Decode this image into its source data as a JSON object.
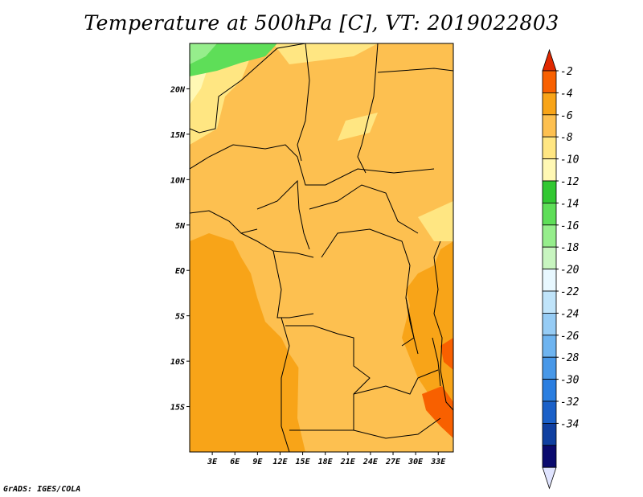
{
  "title": "Temperature at 500hPa [C], VT: 2019022803",
  "credit": "GrADS: IGES/COLA",
  "map": {
    "lon_range": [
      0,
      35
    ],
    "lat_range": [
      -20,
      25
    ],
    "lon_ticks": [
      {
        "value": 3,
        "label": "3E"
      },
      {
        "value": 6,
        "label": "6E"
      },
      {
        "value": 9,
        "label": "9E"
      },
      {
        "value": 12,
        "label": "12E"
      },
      {
        "value": 15,
        "label": "15E"
      },
      {
        "value": 18,
        "label": "18E"
      },
      {
        "value": 21,
        "label": "21E"
      },
      {
        "value": 24,
        "label": "24E"
      },
      {
        "value": 27,
        "label": "27E"
      },
      {
        "value": 30,
        "label": "30E"
      },
      {
        "value": 33,
        "label": "33E"
      }
    ],
    "lat_ticks": [
      {
        "value": 20,
        "label": "20N"
      },
      {
        "value": 15,
        "label": "15N"
      },
      {
        "value": 10,
        "label": "10N"
      },
      {
        "value": 5,
        "label": "5N"
      },
      {
        "value": 0,
        "label": "EQ"
      },
      {
        "value": -5,
        "label": "5S"
      },
      {
        "value": -10,
        "label": "10S"
      },
      {
        "value": -15,
        "label": "15S"
      }
    ]
  },
  "colorbar": {
    "colors": [
      "#0a0a6e",
      "#0f3fa0",
      "#1a60c8",
      "#2a7ee0",
      "#4898e8",
      "#6eb4f0",
      "#96ccf5",
      "#c0e4fa",
      "#e8f8ff",
      "#c8f5c0",
      "#96ee8c",
      "#5ede58",
      "#32c832",
      "#fff8b4",
      "#ffe682",
      "#fdc050",
      "#f8a418",
      "#f86000",
      "#e02800"
    ],
    "bins": [
      {
        "color": "#f86000",
        "label": "-2"
      },
      {
        "color": "#f8a418",
        "label": "-4"
      },
      {
        "color": "#fdc050",
        "label": "-6"
      },
      {
        "color": "#ffe682",
        "label": "-8"
      },
      {
        "color": "#fff8b4",
        "label": "-10"
      },
      {
        "color": "#32c832",
        "label": "-12"
      },
      {
        "color": "#5ede58",
        "label": "-14"
      },
      {
        "color": "#96ee8c",
        "label": "-16"
      },
      {
        "color": "#c8f5c0",
        "label": "-18"
      },
      {
        "color": "#e8f8ff",
        "label": "-20"
      },
      {
        "color": "#c0e4fa",
        "label": "-22"
      },
      {
        "color": "#96ccf5",
        "label": "-24"
      },
      {
        "color": "#6eb4f0",
        "label": "-26"
      },
      {
        "color": "#4898e8",
        "label": "-28"
      },
      {
        "color": "#2a7ee0",
        "label": "-30"
      },
      {
        "color": "#1a60c8",
        "label": "-32"
      },
      {
        "color": "#0f3fa0",
        "label": "-34"
      },
      {
        "color": "#0a0a6e",
        "label": ""
      }
    ],
    "top_color": "#e02800",
    "bottom_color": "#e0e4ff"
  },
  "field_colors": {
    "ocean_base": "#f8a418",
    "land_base": "#fdc050",
    "cool": "#ffe682",
    "cooler": "#fff8b4",
    "green": "#5ede58",
    "light_green": "#96ee8c",
    "warm": "#f86000"
  }
}
